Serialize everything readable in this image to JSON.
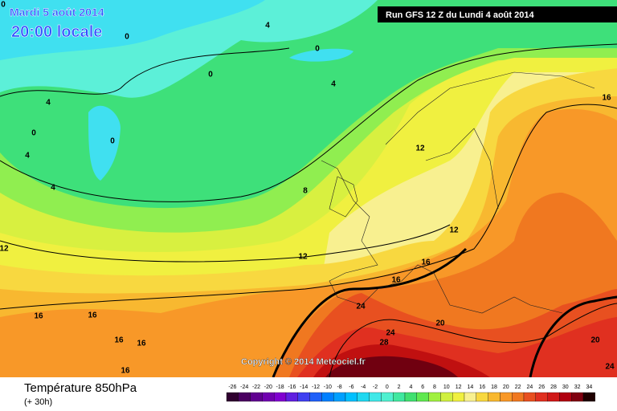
{
  "header": {
    "date": "Mardi 5 août 2014",
    "time": "20:00 locale",
    "run": "Run GFS 12 Z du Lundi 4 août 2014",
    "copyright": "Copyright © 2014 Meteociel.fr"
  },
  "footer": {
    "title": "Température 850hPa",
    "lead": "(+ 30h)"
  },
  "legend": {
    "labels": [
      -26,
      -24,
      -22,
      -20,
      -18,
      -16,
      -14,
      -12,
      -10,
      -8,
      -6,
      -4,
      -2,
      0,
      2,
      4,
      6,
      8,
      10,
      12,
      14,
      16,
      18,
      20,
      22,
      24,
      26,
      28,
      30,
      32,
      34
    ],
    "colors": [
      "#300030",
      "#4a0060",
      "#600090",
      "#7000b0",
      "#8000d0",
      "#6020e0",
      "#4040f0",
      "#2060f8",
      "#0080ff",
      "#00a0ff",
      "#00c0ff",
      "#20d8f0",
      "#40e8e8",
      "#50f0d0",
      "#40e8a0",
      "#40e070",
      "#60e850",
      "#a0f040",
      "#d0f040",
      "#f0f040",
      "#f8f090",
      "#f8d840",
      "#f8b830",
      "#f89828",
      "#f07820",
      "#e85020",
      "#e03020",
      "#d01818",
      "#b00010",
      "#800010",
      "#200000"
    ]
  },
  "contour_labels": [
    0,
    4,
    0,
    0,
    4,
    4,
    0,
    0,
    4,
    4,
    8,
    12,
    16,
    12,
    12,
    16,
    16,
    12,
    24,
    20,
    24,
    28,
    20,
    24,
    16,
    16,
    16,
    16,
    16,
    0
  ]
}
